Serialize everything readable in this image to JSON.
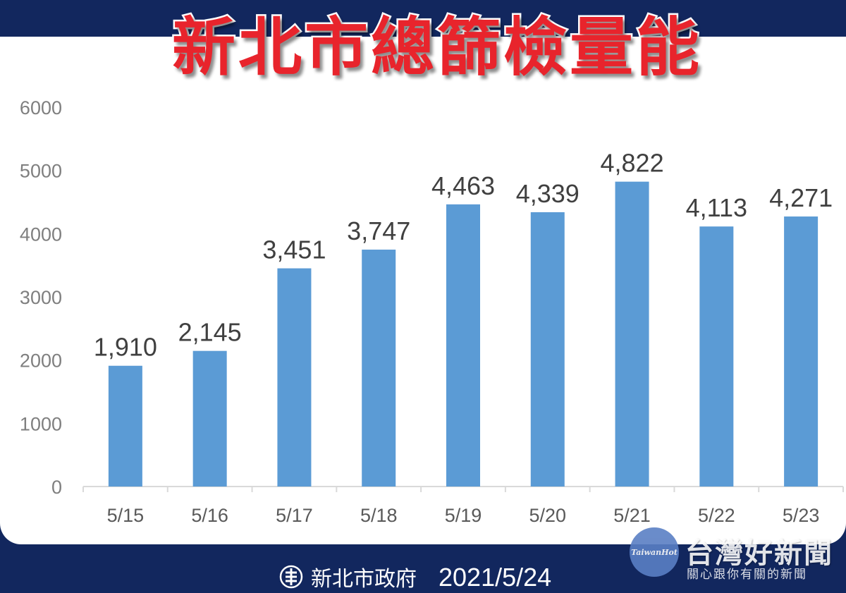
{
  "title": "新北市總篩檢量能",
  "footer": {
    "organization": "新北市政府",
    "date": "2021/5/24"
  },
  "watermark": {
    "logo_text": "TaiwanHot",
    "name": "台灣好新聞",
    "slogan": "關心跟你有關的新聞"
  },
  "colors": {
    "bar": "#5b9bd5",
    "background": "#12275e",
    "title": "#e8242c"
  },
  "chart_data": {
    "type": "bar",
    "title": "新北市總篩檢量能",
    "categories": [
      "5/15",
      "5/16",
      "5/17",
      "5/18",
      "5/19",
      "5/20",
      "5/21",
      "5/22",
      "5/23"
    ],
    "values": [
      1910,
      2145,
      3451,
      3747,
      4463,
      4339,
      4822,
      4113,
      4271
    ],
    "data_labels": [
      "1,910",
      "2,145",
      "3,451",
      "3,747",
      "4,463",
      "4,339",
      "4,822",
      "4,113",
      "4,271"
    ],
    "y_ticks": [
      0,
      1000,
      2000,
      3000,
      4000,
      5000,
      6000
    ],
    "ylim": [
      0,
      6000
    ],
    "xlabel": "",
    "ylabel": "",
    "grid": false,
    "legend": "none"
  }
}
